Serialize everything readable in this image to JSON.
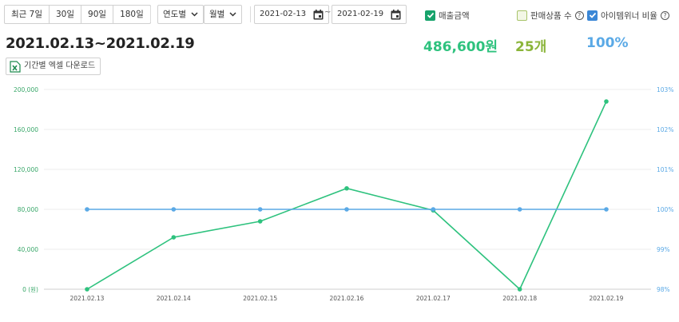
{
  "toolbar": {
    "period_buttons": [
      "최근 7일",
      "30일",
      "90일",
      "180일"
    ],
    "year_select": "연도별",
    "month_select": "월별",
    "start_date": "2021-02-13",
    "date_separator": "~",
    "end_date": "2021-02-19",
    "options": [
      {
        "label": "매출금액",
        "checked": true,
        "help": false
      },
      {
        "label": "판매상품 수",
        "checked": false,
        "help": true
      },
      {
        "label": "아이템위너 비율",
        "checked": true,
        "help": true
      }
    ]
  },
  "summary": {
    "range": "2021.02.13~2021.02.19",
    "sales": "486,600원",
    "items": "25개",
    "ratio": "100%"
  },
  "excel_button": "기간별 엑셀 다운로드",
  "colors": {
    "sales": "#2ec27e",
    "items": "#8bb53a",
    "ratio": "#5aa9e6",
    "checkbox_on_sales": "#17a36b",
    "checkbox_on_ratio": "#3b87d6"
  },
  "chart_data": {
    "type": "line",
    "categories": [
      "2021.02.13",
      "2021.02.14",
      "2021.02.15",
      "2021.02.16",
      "2021.02.17",
      "2021.02.18",
      "2021.02.19"
    ],
    "series": [
      {
        "name": "매출금액",
        "axis": "left",
        "color": "#2ec27e",
        "values": [
          0,
          52000,
          68000,
          101000,
          79000,
          0,
          188000
        ]
      },
      {
        "name": "아이템위너 비율",
        "axis": "right",
        "color": "#5aa9e6",
        "values": [
          100,
          100,
          100,
          100,
          100,
          100,
          100
        ]
      }
    ],
    "left_axis": {
      "ylim": [
        0,
        200000
      ],
      "ticks": [
        "0 (원)",
        "40,000",
        "80,000",
        "120,000",
        "160,000",
        "200,000"
      ]
    },
    "right_axis": {
      "ylim": [
        98,
        103
      ],
      "ticks": [
        "98%",
        "99%",
        "100%",
        "101%",
        "102%",
        "103%"
      ]
    },
    "grid": true
  }
}
